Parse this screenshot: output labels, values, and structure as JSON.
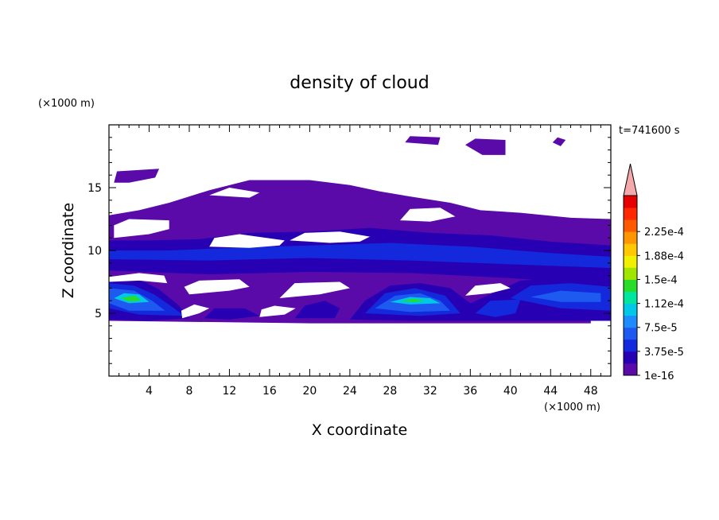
{
  "chart_data": {
    "type": "heatmap",
    "title": "density of cloud",
    "xlabel": "X coordinate",
    "ylabel": "Z coordinate",
    "x_unit": "(×1000 m)",
    "y_unit": "(×1000 m)",
    "time_label": "t=741600 s",
    "xlim": [
      0,
      50
    ],
    "ylim": [
      0,
      20
    ],
    "x_ticks": [
      4,
      8,
      12,
      16,
      20,
      24,
      28,
      32,
      36,
      40,
      44,
      48
    ],
    "y_ticks": [
      5,
      10,
      15
    ],
    "grid": false,
    "colorbar": {
      "labels": [
        "1e-16",
        "3.75e-5",
        "7.5e-5",
        "1.12e-4",
        "1.5e-4",
        "1.88e-4",
        "2.25e-4"
      ],
      "colors": [
        "#5a0aa8",
        "#2800b4",
        "#1428dc",
        "#1e5af0",
        "#1e8cff",
        "#00c8e6",
        "#00e6a0",
        "#28dc28",
        "#a0e600",
        "#f0f000",
        "#ffc800",
        "#ff9600",
        "#ff5a00",
        "#ff2800",
        "#e60000"
      ],
      "extend_color": "#f4aaaa"
    },
    "regions": [
      {
        "level": 0,
        "points": [
          [
            0,
            7
          ],
          [
            0,
            12.8
          ],
          [
            3,
            13.2
          ],
          [
            6,
            13.8
          ],
          [
            10,
            14.8
          ],
          [
            14,
            15.6
          ],
          [
            20,
            15.6
          ],
          [
            24,
            15.2
          ],
          [
            27,
            14.7
          ],
          [
            30,
            14.3
          ],
          [
            34,
            13.8
          ],
          [
            37,
            13.2
          ],
          [
            41,
            13
          ],
          [
            46,
            12.6
          ],
          [
            50,
            12.5
          ],
          [
            50,
            7
          ],
          [
            48,
            5.5
          ],
          [
            48,
            4.2
          ],
          [
            20,
            4.2
          ],
          [
            0,
            4.4
          ]
        ]
      },
      {
        "level": 0,
        "points": [
          [
            0.5,
            15.4
          ],
          [
            0.8,
            16.3
          ],
          [
            5,
            16.5
          ],
          [
            4.6,
            15.8
          ],
          [
            2,
            15.4
          ]
        ]
      },
      {
        "level": 0,
        "points": [
          [
            29.5,
            18.6
          ],
          [
            30,
            19.1
          ],
          [
            33,
            19
          ],
          [
            32.8,
            18.4
          ]
        ]
      },
      {
        "level": 0,
        "points": [
          [
            35.5,
            18.4
          ],
          [
            36.5,
            18.9
          ],
          [
            39.5,
            18.8
          ],
          [
            39.5,
            17.6
          ],
          [
            37.2,
            17.6
          ]
        ]
      },
      {
        "level": 0,
        "points": [
          [
            44.2,
            18.6
          ],
          [
            44.7,
            19
          ],
          [
            45.5,
            18.8
          ],
          [
            45,
            18.3
          ]
        ]
      },
      {
        "level": 1,
        "points": [
          [
            0,
            8.4
          ],
          [
            0,
            10.8
          ],
          [
            4,
            10.8
          ],
          [
            9,
            10.9
          ],
          [
            14,
            11.4
          ],
          [
            20,
            11.5
          ],
          [
            26,
            11.8
          ],
          [
            32,
            11.4
          ],
          [
            38,
            11.2
          ],
          [
            44,
            10.7
          ],
          [
            50,
            10.4
          ],
          [
            50,
            7.2
          ],
          [
            40,
            7.8
          ],
          [
            30,
            8.2
          ],
          [
            20,
            8.3
          ],
          [
            10,
            8.1
          ]
        ]
      },
      {
        "level": 2,
        "points": [
          [
            0,
            9.3
          ],
          [
            0,
            10
          ],
          [
            6,
            10
          ],
          [
            12,
            10.2
          ],
          [
            20,
            10.4
          ],
          [
            28,
            10.6
          ],
          [
            36,
            10.3
          ],
          [
            44,
            9.8
          ],
          [
            50,
            9.5
          ],
          [
            50,
            8.6
          ],
          [
            40,
            8.9
          ],
          [
            30,
            9.2
          ],
          [
            20,
            9.4
          ],
          [
            10,
            9.2
          ]
        ]
      },
      {
        "level": 1,
        "points": [
          [
            0,
            4.5
          ],
          [
            0,
            7.9
          ],
          [
            3,
            7.7
          ],
          [
            5,
            6.9
          ],
          [
            7,
            5.6
          ],
          [
            8,
            4.6
          ],
          [
            4,
            4.4
          ]
        ]
      },
      {
        "level": 1,
        "points": [
          [
            24,
            4.5
          ],
          [
            25.5,
            6
          ],
          [
            28,
            7.2
          ],
          [
            31,
            7.4
          ],
          [
            34,
            7
          ],
          [
            36,
            5.8
          ],
          [
            38,
            6.5
          ],
          [
            41,
            7.6
          ],
          [
            45,
            7.8
          ],
          [
            48,
            7.6
          ],
          [
            50,
            7.4
          ],
          [
            50,
            4.4
          ],
          [
            40,
            4.4
          ],
          [
            30,
            4.4
          ]
        ]
      },
      {
        "level": 1,
        "points": [
          [
            18.5,
            4.6
          ],
          [
            19.5,
            5.6
          ],
          [
            21.5,
            6
          ],
          [
            23,
            5.4
          ],
          [
            22.5,
            4.6
          ]
        ]
      },
      {
        "level": 1,
        "points": [
          [
            9.5,
            4.6
          ],
          [
            10.5,
            5.4
          ],
          [
            13.5,
            5.4
          ],
          [
            15,
            4.8
          ],
          [
            12,
            4.5
          ]
        ]
      },
      {
        "level": 2,
        "points": [
          [
            0,
            5.4
          ],
          [
            0,
            7.4
          ],
          [
            2.5,
            7.2
          ],
          [
            4.5,
            6.5
          ],
          [
            6.5,
            5.4
          ],
          [
            7.5,
            4.8
          ],
          [
            3,
            4.9
          ]
        ]
      },
      {
        "level": 2,
        "points": [
          [
            25.5,
            5
          ],
          [
            27.5,
            6.6
          ],
          [
            30.5,
            7
          ],
          [
            33.5,
            6.4
          ],
          [
            35,
            5
          ],
          [
            31,
            4.8
          ]
        ]
      },
      {
        "level": 2,
        "points": [
          [
            40,
            6.2
          ],
          [
            42,
            7.2
          ],
          [
            46,
            7.4
          ],
          [
            50,
            7.1
          ],
          [
            50,
            5.2
          ],
          [
            45,
            5.4
          ]
        ]
      },
      {
        "level": 2,
        "points": [
          [
            36.5,
            5
          ],
          [
            38,
            6
          ],
          [
            41,
            6.1
          ],
          [
            40.5,
            5
          ],
          [
            38.5,
            4.7
          ]
        ]
      },
      {
        "level": 3,
        "points": [
          [
            0,
            5.8
          ],
          [
            0,
            7
          ],
          [
            2.5,
            6.8
          ],
          [
            4.3,
            6
          ],
          [
            5.6,
            5.2
          ],
          [
            2,
            5.2
          ]
        ]
      },
      {
        "level": 3,
        "points": [
          [
            26.5,
            5.4
          ],
          [
            28.5,
            6.4
          ],
          [
            31,
            6.6
          ],
          [
            33,
            6
          ],
          [
            34,
            5.2
          ],
          [
            30,
            5.1
          ]
        ]
      },
      {
        "level": 3,
        "points": [
          [
            42,
            6.3
          ],
          [
            45,
            6.8
          ],
          [
            49,
            6.6
          ],
          [
            49,
            5.9
          ],
          [
            45,
            5.9
          ]
        ]
      },
      {
        "level": 5,
        "points": [
          [
            0.5,
            6.2
          ],
          [
            1.5,
            6.6
          ],
          [
            3,
            6.5
          ],
          [
            4,
            5.9
          ],
          [
            2,
            5.8
          ]
        ]
      },
      {
        "level": 5,
        "points": [
          [
            28,
            5.9
          ],
          [
            30,
            6.3
          ],
          [
            32,
            6.2
          ],
          [
            33,
            5.8
          ],
          [
            30,
            5.7
          ]
        ]
      },
      {
        "level": 7,
        "points": [
          [
            1.2,
            6.2
          ],
          [
            2.6,
            6.4
          ],
          [
            3.2,
            6
          ],
          [
            2,
            5.95
          ]
        ]
      },
      {
        "level": 7,
        "points": [
          [
            29,
            6.0
          ],
          [
            30.5,
            6.15
          ],
          [
            31.5,
            6.0
          ],
          [
            30.2,
            5.9
          ]
        ]
      }
    ],
    "gaps": [
      {
        "points": [
          [
            0.5,
            11
          ],
          [
            4,
            11.3
          ],
          [
            6,
            11.7
          ],
          [
            6,
            12.4
          ],
          [
            2,
            12.5
          ],
          [
            0.5,
            12
          ]
        ]
      },
      {
        "points": [
          [
            10,
            10.3
          ],
          [
            14,
            10.2
          ],
          [
            17,
            10.4
          ],
          [
            17.5,
            10.8
          ],
          [
            13,
            11.3
          ],
          [
            10.5,
            11
          ]
        ]
      },
      {
        "points": [
          [
            18,
            10.8
          ],
          [
            22,
            10.6
          ],
          [
            25,
            10.7
          ],
          [
            26,
            11.1
          ],
          [
            23,
            11.5
          ],
          [
            19.5,
            11.4
          ]
        ]
      },
      {
        "points": [
          [
            29,
            12.4
          ],
          [
            32,
            12.3
          ],
          [
            34.5,
            12.7
          ],
          [
            33,
            13.4
          ],
          [
            30,
            13.3
          ]
        ]
      },
      {
        "points": [
          [
            10,
            14.4
          ],
          [
            14,
            14.2
          ],
          [
            15,
            14.6
          ],
          [
            12,
            15
          ]
        ]
      },
      {
        "points": [
          [
            0,
            7.9
          ],
          [
            3,
            8.2
          ],
          [
            5.5,
            8
          ],
          [
            5.8,
            7.4
          ],
          [
            3,
            7.6
          ],
          [
            0,
            7.5
          ]
        ]
      },
      {
        "points": [
          [
            8,
            6.5
          ],
          [
            12,
            6.8
          ],
          [
            14,
            7.1
          ],
          [
            13,
            7.7
          ],
          [
            9,
            7.6
          ],
          [
            7.5,
            7.1
          ]
        ]
      },
      {
        "points": [
          [
            17,
            6.2
          ],
          [
            21,
            6.5
          ],
          [
            24,
            7
          ],
          [
            23,
            7.5
          ],
          [
            18.5,
            7.4
          ]
        ]
      },
      {
        "points": [
          [
            35.5,
            6.4
          ],
          [
            38,
            6.6
          ],
          [
            40,
            7
          ],
          [
            39,
            7.4
          ],
          [
            36.5,
            7.2
          ]
        ]
      },
      {
        "points": [
          [
            7.3,
            4.6
          ],
          [
            9,
            5
          ],
          [
            10,
            5.4
          ],
          [
            8.5,
            5.7
          ],
          [
            7.2,
            5.2
          ]
        ]
      },
      {
        "points": [
          [
            15,
            4.7
          ],
          [
            17.5,
            4.9
          ],
          [
            18.6,
            5.4
          ],
          [
            16.5,
            5.6
          ],
          [
            15.2,
            5.3
          ]
        ]
      }
    ]
  }
}
